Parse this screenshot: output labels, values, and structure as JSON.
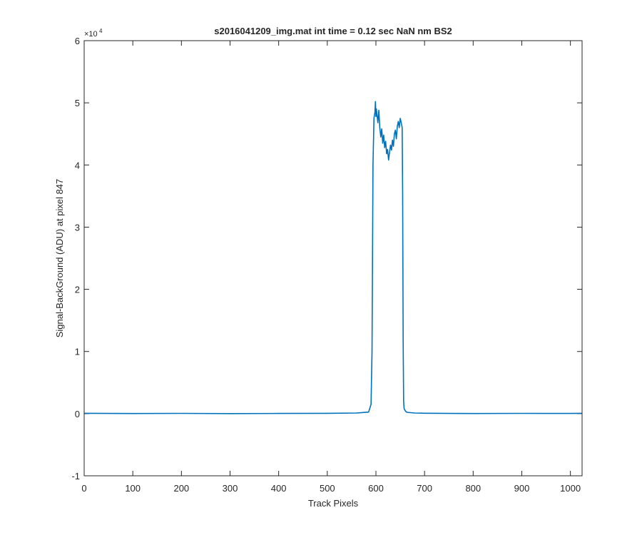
{
  "chart_data": {
    "type": "line",
    "title": "s2016041209_img.mat int time = 0.12 sec  NaN nm BS2",
    "xlabel": "Track Pixels",
    "ylabel": "Signal-BackGround (ADU) at pixel 847",
    "xlim": [
      0,
      1024
    ],
    "ylim": [
      -10000,
      60000
    ],
    "y_exponent_label": "×10",
    "y_exponent_power": "4",
    "x_ticks": [
      0,
      100,
      200,
      300,
      400,
      500,
      600,
      700,
      800,
      900,
      1000
    ],
    "x_tick_labels": [
      "0",
      "100",
      "200",
      "300",
      "400",
      "500",
      "600",
      "700",
      "800",
      "900",
      "1000"
    ],
    "y_ticks": [
      -10000,
      0,
      10000,
      20000,
      30000,
      40000,
      50000,
      60000
    ],
    "y_tick_labels": [
      "-1",
      "0",
      "1",
      "2",
      "3",
      "4",
      "5",
      "6"
    ],
    "grid": false,
    "line_color": "#0072BD",
    "series": [
      {
        "x": [
          0,
          100,
          200,
          300,
          400,
          500,
          560,
          585,
          590,
          592,
          594,
          596,
          598,
          599,
          600,
          601,
          602,
          604,
          606,
          608,
          610,
          612,
          614,
          616,
          618,
          620,
          622,
          624,
          626,
          628,
          630,
          632,
          634,
          636,
          638,
          640,
          642,
          644,
          646,
          648,
          650,
          652,
          654,
          655,
          656,
          657,
          658,
          660,
          662,
          665,
          680,
          700,
          800,
          900,
          1000,
          1024
        ],
        "values": [
          50,
          20,
          40,
          10,
          30,
          50,
          100,
          250,
          1500,
          10000,
          40000,
          47500,
          48500,
          50200,
          47800,
          49000,
          48200,
          46800,
          48800,
          46000,
          44500,
          45800,
          43500,
          44800,
          42800,
          43800,
          41800,
          42500,
          40800,
          42000,
          43200,
          42400,
          44000,
          43000,
          45000,
          45600,
          44200,
          46200,
          47000,
          46000,
          47500,
          46800,
          46000,
          35000,
          12000,
          2000,
          800,
          500,
          300,
          200,
          100,
          60,
          20,
          40,
          30,
          50
        ]
      }
    ]
  }
}
